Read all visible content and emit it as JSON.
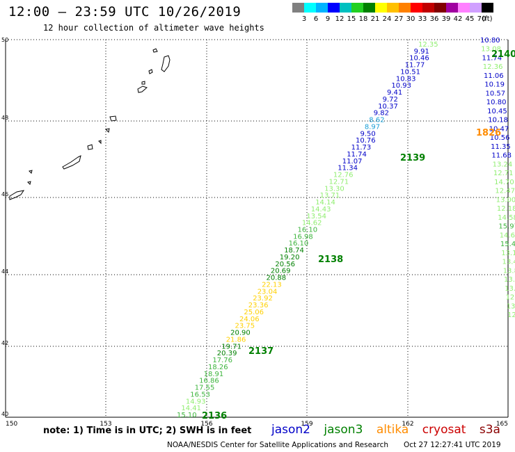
{
  "header": {
    "title": "12:00 – 23:59 UTC 10/26/2019",
    "subtitle": "12 hour collection of altimeter wave heights"
  },
  "legend": {
    "colors": [
      "#808080",
      "#00ffff",
      "#00b4ff",
      "#0000ff",
      "#00c0c0",
      "#22d022",
      "#008000",
      "#ffff00",
      "#ffc000",
      "#ff8000",
      "#ff0000",
      "#c00000",
      "#800000",
      "#a000a0",
      "#ff80ff",
      "#d0a0ff",
      "#000000"
    ],
    "labels": [
      "3",
      "6",
      "9",
      "12",
      "15",
      "18",
      "21",
      "24",
      "27",
      "30",
      "33",
      "36",
      "39",
      "42",
      "45",
      "70",
      "(ft)"
    ]
  },
  "axes": {
    "x_ticks": [
      "150",
      "153",
      "156",
      "159",
      "162",
      "165"
    ],
    "y_ticks": [
      "50",
      "48",
      "46",
      "44",
      "42",
      "40"
    ]
  },
  "colors": {
    "jason2": "#0000c8",
    "jason3": "#008000",
    "altika": "#ff8c00",
    "cryosat": "#cc0000",
    "s3a": "#8b0000",
    "swh_9_12": "#0000c8",
    "swh_6_9": "#1a9fd6",
    "swh_12_15": "#3cb43c",
    "swh_15_18": "#90ee70",
    "swh_18_21": "#008000",
    "swh_21_24": "#cccc00",
    "swh_24_27": "#ffd000",
    "label_altika": "#ff8c00"
  },
  "passes": {
    "pass_2136": {
      "label": "2136",
      "color": "#008000"
    },
    "pass_2137": {
      "label": "2137",
      "color": "#008000"
    },
    "pass_2138": {
      "label": "2138",
      "color": "#008000"
    },
    "pass_2139": {
      "label": "2139",
      "color": "#008000"
    },
    "pass_2140": {
      "label": "2140",
      "color": "#008000"
    },
    "pass_1826": {
      "label": "1826",
      "color": "#ff8c00"
    }
  },
  "track_main": [
    {
      "v": "15.10",
      "c": "#3cb43c"
    },
    {
      "v": "14.41",
      "c": "#90ee70"
    },
    {
      "v": "14.93",
      "c": "#90ee70"
    },
    {
      "v": "16.53",
      "c": "#3cb43c"
    },
    {
      "v": "17.55",
      "c": "#3cb43c"
    },
    {
      "v": "16.86",
      "c": "#3cb43c"
    },
    {
      "v": "18.91",
      "c": "#3cb43c"
    },
    {
      "v": "18.26",
      "c": "#3cb43c"
    },
    {
      "v": "17.76",
      "c": "#3cb43c"
    },
    {
      "v": "20.39",
      "c": "#008000"
    },
    {
      "v": "19.71",
      "c": "#008000"
    },
    {
      "v": "21.86",
      "c": "#ffd000"
    },
    {
      "v": "20.90",
      "c": "#008000"
    },
    {
      "v": "23.75",
      "c": "#ffd000"
    },
    {
      "v": "24.06",
      "c": "#ffd000"
    },
    {
      "v": "25.06",
      "c": "#ffd000"
    },
    {
      "v": "23.36",
      "c": "#ffd000"
    },
    {
      "v": "23.92",
      "c": "#ffd000"
    },
    {
      "v": "23.04",
      "c": "#ffd000"
    },
    {
      "v": "22.13",
      "c": "#ffd000"
    },
    {
      "v": "20.88",
      "c": "#008000"
    },
    {
      "v": "20.69",
      "c": "#008000"
    },
    {
      "v": "20.56",
      "c": "#008000"
    },
    {
      "v": "19.20",
      "c": "#008000"
    },
    {
      "v": "18.74",
      "c": "#008000"
    },
    {
      "v": "16.10",
      "c": "#3cb43c"
    },
    {
      "v": "16.98",
      "c": "#3cb43c"
    },
    {
      "v": "16.10",
      "c": "#3cb43c"
    },
    {
      "v": "14.62",
      "c": "#90ee70"
    },
    {
      "v": "13.54",
      "c": "#90ee70"
    },
    {
      "v": "14.43",
      "c": "#90ee70"
    },
    {
      "v": "14.14",
      "c": "#90ee70"
    },
    {
      "v": "13.71",
      "c": "#90ee70"
    },
    {
      "v": "13.30",
      "c": "#90ee70"
    },
    {
      "v": "12.71",
      "c": "#90ee70"
    },
    {
      "v": "12.76",
      "c": "#90ee70"
    },
    {
      "v": "11.34",
      "c": "#0000c8"
    },
    {
      "v": "11.07",
      "c": "#0000c8"
    },
    {
      "v": "11.74",
      "c": "#0000c8"
    },
    {
      "v": "11.73",
      "c": "#0000c8"
    },
    {
      "v": "10.76",
      "c": "#0000c8"
    },
    {
      "v": "9.50",
      "c": "#0000c8"
    },
    {
      "v": "8.97",
      "c": "#1a9fd6"
    },
    {
      "v": "8.62",
      "c": "#1a9fd6"
    },
    {
      "v": "9.82",
      "c": "#0000c8"
    },
    {
      "v": "10.37",
      "c": "#0000c8"
    },
    {
      "v": "9.72",
      "c": "#0000c8"
    },
    {
      "v": "9.41",
      "c": "#0000c8"
    },
    {
      "v": "10.93",
      "c": "#0000c8"
    },
    {
      "v": "10.83",
      "c": "#0000c8"
    },
    {
      "v": "10.51",
      "c": "#0000c8"
    },
    {
      "v": "11.77",
      "c": "#0000c8"
    },
    {
      "v": "10.46",
      "c": "#0000c8"
    },
    {
      "v": "9.91",
      "c": "#0000c8"
    },
    {
      "v": "12.35",
      "c": "#90ee70"
    }
  ],
  "track_2140": [
    {
      "v": "10.80",
      "c": "#0000c8"
    },
    {
      "v": "13.08",
      "c": "#90ee70"
    },
    {
      "v": "11.74",
      "c": "#0000c8"
    },
    {
      "v": "12.36",
      "c": "#90ee70"
    },
    {
      "v": "11.06",
      "c": "#0000c8"
    },
    {
      "v": "10.19",
      "c": "#0000c8"
    },
    {
      "v": "10.57",
      "c": "#0000c8"
    },
    {
      "v": "10.80",
      "c": "#0000c8"
    },
    {
      "v": "10.45",
      "c": "#0000c8"
    },
    {
      "v": "10.18",
      "c": "#0000c8"
    },
    {
      "v": "10.47",
      "c": "#0000c8"
    },
    {
      "v": "10.56",
      "c": "#0000c8"
    },
    {
      "v": "11.35",
      "c": "#0000c8"
    },
    {
      "v": "11.68",
      "c": "#0000c8"
    },
    {
      "v": "13.24",
      "c": "#90ee70"
    },
    {
      "v": "12.71",
      "c": "#90ee70"
    },
    {
      "v": "14.70",
      "c": "#90ee70"
    },
    {
      "v": "12.47",
      "c": "#90ee70"
    },
    {
      "v": "13.00",
      "c": "#90ee70"
    },
    {
      "v": "12.18",
      "c": "#90ee70"
    },
    {
      "v": "14.58",
      "c": "#90ee70"
    },
    {
      "v": "15.97",
      "c": "#3cb43c"
    },
    {
      "v": "14.66",
      "c": "#90ee70"
    },
    {
      "v": "15.42",
      "c": "#3cb43c"
    },
    {
      "v": "13.13",
      "c": "#90ee70"
    },
    {
      "v": "13.42",
      "c": "#90ee70"
    },
    {
      "v": "13.88",
      "c": "#90ee70"
    },
    {
      "v": "13.4",
      "c": "#90ee70"
    },
    {
      "v": "13.",
      "c": "#90ee70"
    },
    {
      "v": "12.",
      "c": "#90ee70"
    },
    {
      "v": "13",
      "c": "#90ee70"
    },
    {
      "v": "12.",
      "c": "#90ee70"
    }
  ],
  "footer": {
    "note": "note: 1) Time is in UTC; 2) SWH is in feet",
    "satellites": [
      {
        "name": "jason2",
        "color": "#0000c8"
      },
      {
        "name": "jason3",
        "color": "#008000"
      },
      {
        "name": "altika",
        "color": "#ff8c00"
      },
      {
        "name": "cryosat",
        "color": "#cc0000"
      },
      {
        "name": "s3a",
        "color": "#8b0000"
      }
    ],
    "credit": "NOAA/NESDIS Center for Satellite Applications and Research",
    "timestamp": "Oct 27 12:27:41 UTC 2019"
  }
}
